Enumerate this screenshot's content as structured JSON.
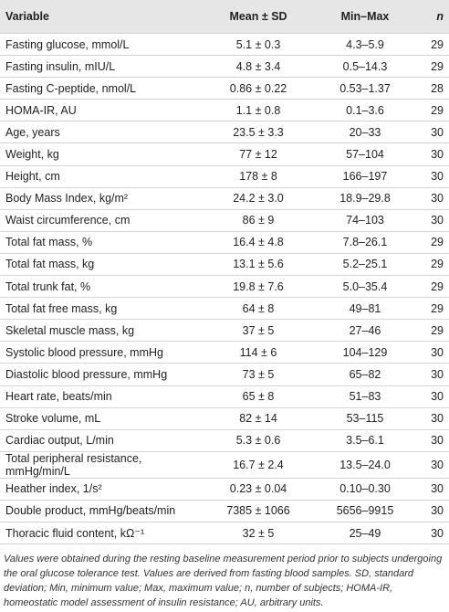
{
  "table": {
    "header": [
      "Variable",
      "Mean ± SD",
      "Min–Max",
      "n"
    ],
    "rows": [
      [
        "Fasting glucose, mmol/L",
        "5.1 ± 0.3",
        "4.3–5.9",
        29
      ],
      [
        "Fasting insulin, mIU/L",
        "4.8 ± 3.4",
        "0.5–14.3",
        29
      ],
      [
        "Fasting C-peptide, nmol/L",
        "0.86 ± 0.22",
        "0.53–1.37",
        28
      ],
      [
        "HOMA-IR, AU",
        "1.1 ± 0.8",
        "0.1–3.6",
        29
      ],
      [
        "Age, years",
        "23.5 ± 3.3",
        "20–33",
        30
      ],
      [
        "Weight, kg",
        "77 ± 12",
        "57–104",
        30
      ],
      [
        "Height, cm",
        "178 ± 8",
        "166–197",
        30
      ],
      [
        "Body Mass Index, kg/m²",
        "24.2 ± 3.0",
        "18.9–29.8",
        30
      ],
      [
        "Waist circumference, cm",
        "86 ± 9",
        "74–103",
        30
      ],
      [
        "Total fat mass, %",
        "16.4 ± 4.8",
        "7.8–26.1",
        29
      ],
      [
        "Total fat mass, kg",
        "13.1 ± 5.6",
        "5.2–25.1",
        29
      ],
      [
        "Total trunk fat, %",
        "19.8 ± 7.6",
        "5.0–35.4",
        29
      ],
      [
        "Total fat free mass, kg",
        "64 ± 8",
        "49–81",
        29
      ],
      [
        "Skeletal muscle mass, kg",
        "37 ± 5",
        "27–46",
        29
      ],
      [
        "Systolic blood pressure, mmHg",
        "114 ± 6",
        "104–129",
        30
      ],
      [
        "Diastolic blood pressure, mmHg",
        "73 ± 5",
        "65–82",
        30
      ],
      [
        "Heart rate, beats/min",
        "65 ± 8",
        "51–83",
        30
      ],
      [
        "Stroke volume, mL",
        "82 ± 14",
        "53–115",
        30
      ],
      [
        "Cardiac output, L/min",
        "5.3 ± 0.6",
        "3.5–6.1",
        30
      ],
      [
        "Total peripheral resistance, mmHg/min/L",
        "16.7 ± 2.4",
        "13.5–24.0",
        30
      ],
      [
        "Heather index, 1/s²",
        "0.23 ± 0.04",
        "0.10–0.30",
        30
      ],
      [
        "Double product, mmHg/beats/min",
        "7385 ± 1066",
        "5656–9915",
        30
      ],
      [
        "Thoracic fluid content, kΩ⁻¹",
        "32 ± 5",
        "25–49",
        30
      ]
    ],
    "footnote": "Values were obtained during the resting baseline measurement period prior to subjects undergoing the oral glucose tolerance test. Values are derived from fasting blood samples. SD, standard deviation; Min, minimum value; Max, maximum value; n, number of subjects; HOMA-IR, homeostatic model assessment of insulin resistance; AU, arbitrary units."
  }
}
